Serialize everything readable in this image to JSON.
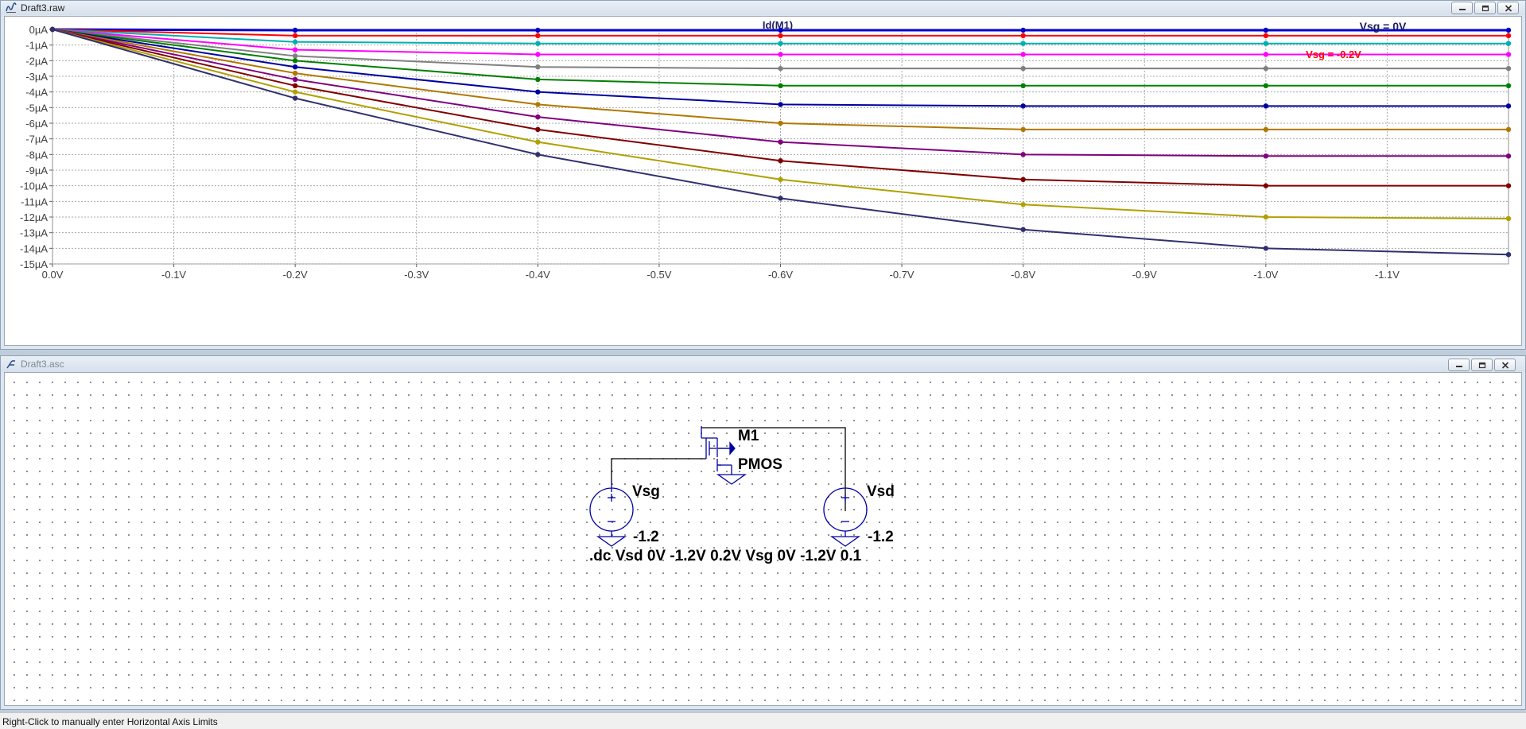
{
  "plot_window": {
    "title": "Draft3.raw",
    "trace_title": "Id(M1)",
    "annotations": [
      {
        "text": "Vsg = 0V",
        "color": "#202060"
      },
      {
        "text": "Vsg = -0.2V",
        "color": "#ff0000"
      }
    ],
    "chart_data": {
      "type": "line",
      "xlim": [
        0,
        -1.2
      ],
      "ylim": [
        0,
        -15
      ],
      "x": [
        0,
        -0.2,
        -0.4,
        -0.6,
        -0.8,
        -1.0,
        -1.2
      ],
      "x_ticks": [
        "0.0V",
        "-0.1V",
        "-0.2V",
        "-0.3V",
        "-0.4V",
        "-0.5V",
        "-0.6V",
        "-0.7V",
        "-0.8V",
        "-0.9V",
        "-1.0V",
        "-1.1V"
      ],
      "y_ticks": [
        "0µA",
        "-1µA",
        "-2µA",
        "-3µA",
        "-4µA",
        "-5µA",
        "-6µA",
        "-7µA",
        "-8µA",
        "-9µA",
        "-10µA",
        "-11µA",
        "-12µA",
        "-13µA",
        "-14µA",
        "-15µA"
      ],
      "grid": true,
      "series": [
        {
          "color": "#0000cc",
          "values": [
            0,
            -0.05,
            -0.05,
            -0.05,
            -0.05,
            -0.05,
            -0.05
          ]
        },
        {
          "color": "#ff0000",
          "values": [
            0,
            -0.4,
            -0.4,
            -0.4,
            -0.4,
            -0.4,
            -0.4
          ]
        },
        {
          "color": "#00b0b0",
          "values": [
            0,
            -0.8,
            -0.9,
            -0.9,
            -0.9,
            -0.9,
            -0.9
          ]
        },
        {
          "color": "#ff00ff",
          "values": [
            0,
            -1.3,
            -1.6,
            -1.6,
            -1.6,
            -1.6,
            -1.6
          ]
        },
        {
          "color": "#808080",
          "values": [
            0,
            -1.7,
            -2.4,
            -2.5,
            -2.5,
            -2.5,
            -2.5
          ]
        },
        {
          "color": "#008000",
          "values": [
            0,
            -2.0,
            -3.2,
            -3.6,
            -3.6,
            -3.6,
            -3.6
          ]
        },
        {
          "color": "#0000a0",
          "values": [
            0,
            -2.4,
            -4.0,
            -4.8,
            -4.9,
            -4.9,
            -4.9
          ]
        },
        {
          "color": "#b07800",
          "values": [
            0,
            -2.8,
            -4.8,
            -6.0,
            -6.4,
            -6.4,
            -6.4
          ]
        },
        {
          "color": "#800080",
          "values": [
            0,
            -3.2,
            -5.6,
            -7.2,
            -8.0,
            -8.1,
            -8.1
          ]
        },
        {
          "color": "#800000",
          "values": [
            0,
            -3.6,
            -6.4,
            -8.4,
            -9.6,
            -10.0,
            -10.0
          ]
        },
        {
          "color": "#b0a000",
          "values": [
            0,
            -4.0,
            -7.2,
            -9.6,
            -11.2,
            -12.0,
            -12.1
          ]
        },
        {
          "color": "#303070",
          "values": [
            0,
            -4.4,
            -8.0,
            -10.8,
            -12.8,
            -14.0,
            -14.4
          ]
        }
      ]
    }
  },
  "schematic_window": {
    "title": "Draft3.asc",
    "labels": {
      "m1": "M1",
      "pmos": "PMOS",
      "vsg": "Vsg",
      "vsd": "Vsd",
      "vsg_value": "-1.2",
      "vsd_value": "-1.2",
      "directive": ".dc Vsd 0V -1.2V 0.2V Vsg 0V -1.2V 0.1"
    },
    "schematic_color": "#0000a0",
    "wire_color": "#000000"
  },
  "status": {
    "text": "Right-Click to manually enter Horizontal Axis Limits"
  }
}
